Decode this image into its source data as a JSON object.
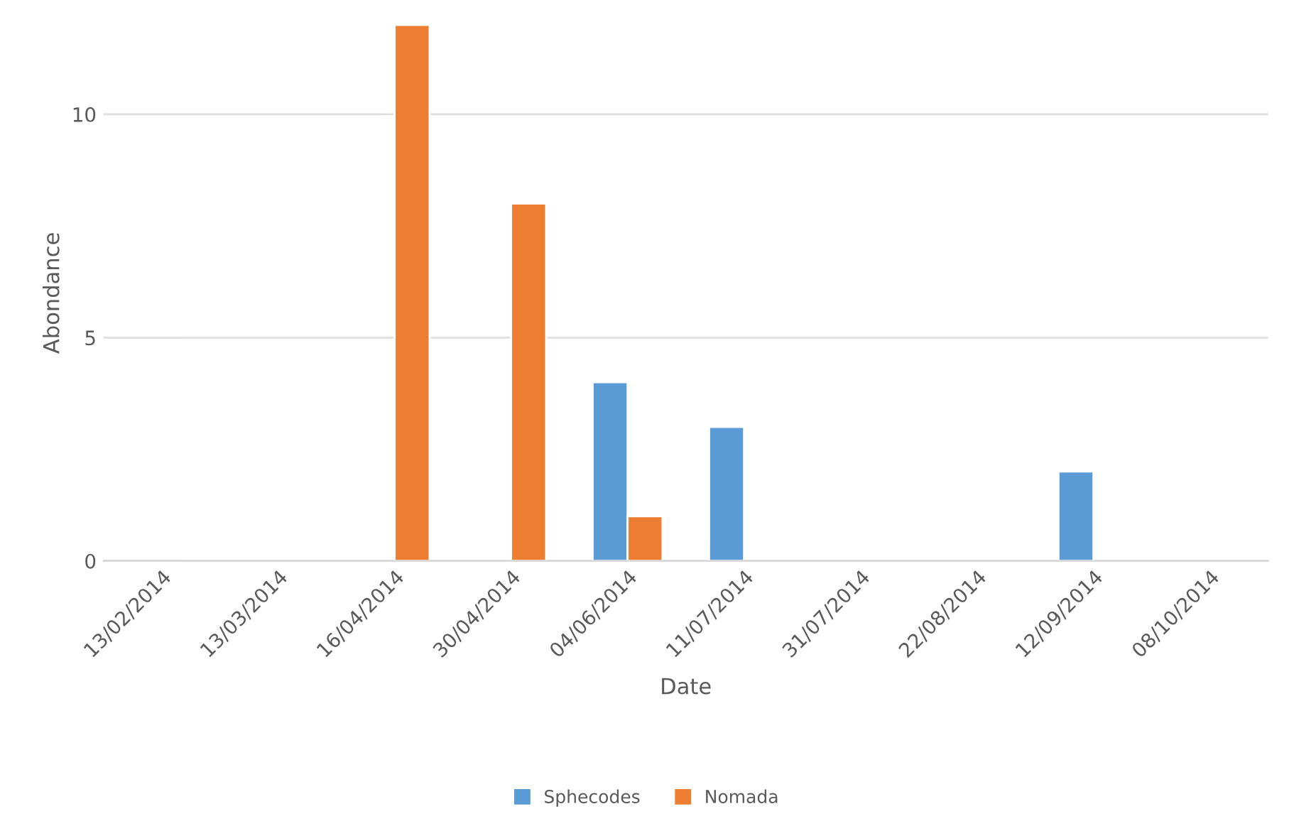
{
  "chart_data": {
    "type": "bar",
    "xlabel": "Date",
    "ylabel": "Abondance",
    "categories": [
      "13/02/2014",
      "13/03/2014",
      "16/04/2014",
      "30/04/2014",
      "04/06/2014",
      "11/07/2014",
      "31/07/2014",
      "22/08/2014",
      "12/09/2014",
      "08/10/2014"
    ],
    "series": [
      {
        "name": "Sphecodes",
        "color": "#5b9bd5",
        "values": [
          null,
          null,
          null,
          null,
          4,
          3,
          null,
          null,
          2,
          null
        ]
      },
      {
        "name": "Nomada",
        "color": "#ed7d31",
        "values": [
          null,
          null,
          12,
          8,
          1,
          null,
          null,
          null,
          null,
          null
        ]
      }
    ],
    "ylim": [
      0,
      12
    ],
    "yticks": [
      0,
      5,
      10
    ],
    "grid": "y",
    "legend": "bottom"
  }
}
